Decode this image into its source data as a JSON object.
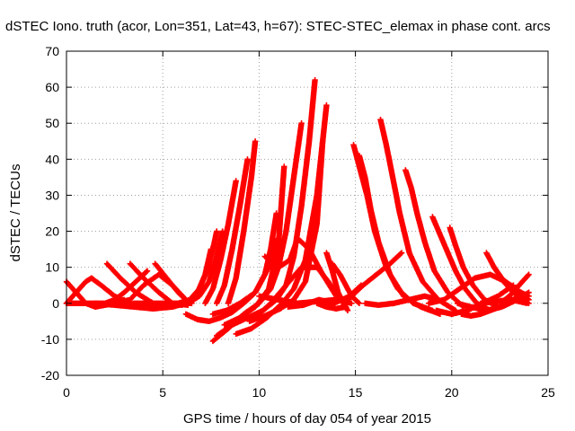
{
  "chart_data": {
    "type": "scatter",
    "title": "dSTEC Iono. truth (acor, Lon=351, Lat=43, h=67): STEC-STEC_elemax in phase cont. arcs",
    "xlabel": "GPS time / hours of day 054 of year 2015",
    "ylabel": "dSTEC  / TECUs",
    "xlim": [
      0,
      25
    ],
    "ylim": [
      -20,
      70
    ],
    "xticks": [
      0,
      5,
      10,
      15,
      20,
      25
    ],
    "yticks": [
      -20,
      -10,
      0,
      10,
      20,
      30,
      40,
      50,
      60,
      70
    ],
    "grid": true,
    "marker": "+",
    "color": "#ff0000",
    "series": [
      {
        "x": [
          0.0,
          0.5,
          1.0,
          1.5,
          2.0,
          2.5,
          3.0
        ],
        "y": [
          6,
          3,
          0,
          -1,
          -0.5,
          0,
          1
        ]
      },
      {
        "x": [
          0.0,
          0.5,
          1.0,
          1.3,
          1.8,
          2.5,
          3.2,
          4.0
        ],
        "y": [
          0,
          3,
          6,
          7,
          5,
          2,
          0,
          -0.5
        ]
      },
      {
        "x": [
          0.0,
          1.0,
          2.0,
          2.5,
          3.0,
          3.6,
          4.2
        ],
        "y": [
          0,
          0,
          0,
          1,
          3,
          6,
          9
        ]
      },
      {
        "x": [
          2.1,
          2.8,
          3.6,
          4.5,
          5.5,
          6.2
        ],
        "y": [
          11,
          7,
          3,
          0,
          -1,
          0
        ]
      },
      {
        "x": [
          2.5,
          3.3,
          4.0,
          4.8,
          5.5,
          6.2
        ],
        "y": [
          0,
          1,
          5,
          8,
          5,
          1
        ]
      },
      {
        "x": [
          3.3,
          4.0,
          4.8,
          5.5,
          6.3
        ],
        "y": [
          11,
          7,
          3,
          0,
          -0.5
        ]
      },
      {
        "x": [
          4.6,
          5.2,
          5.8,
          6.4
        ],
        "y": [
          11,
          7,
          3,
          0
        ]
      },
      {
        "x": [
          1.5,
          2.5,
          3.5,
          4.5,
          5.5,
          6.0
        ],
        "y": [
          0,
          -0.5,
          -1,
          -1.5,
          -1,
          0
        ]
      },
      {
        "x": [
          3.5,
          4.5,
          5.5,
          6.0,
          6.5
        ],
        "y": [
          0,
          0,
          0,
          0,
          0
        ]
      },
      {
        "x": [
          5.5,
          6.0,
          6.4,
          6.8,
          7.2,
          7.5
        ],
        "y": [
          0,
          -0.5,
          0.5,
          3,
          8,
          15
        ]
      },
      {
        "x": [
          5.8,
          6.4,
          6.9,
          7.3,
          7.6,
          7.8
        ],
        "y": [
          0,
          1,
          4,
          9,
          15,
          20
        ]
      },
      {
        "x": [
          6.3,
          6.9,
          7.4,
          7.8,
          8.1
        ],
        "y": [
          0,
          2,
          6,
          13,
          20
        ]
      },
      {
        "x": [
          7.2,
          7.6,
          8.0,
          8.4,
          8.8
        ],
        "y": [
          0,
          4,
          12,
          22,
          34
        ]
      },
      {
        "x": [
          7.8,
          8.2,
          8.6,
          9.0,
          9.4
        ],
        "y": [
          0,
          5,
          15,
          27,
          40
        ]
      },
      {
        "x": [
          8.4,
          8.8,
          9.2,
          9.6,
          9.8
        ],
        "y": [
          0,
          7,
          20,
          35,
          45
        ]
      },
      {
        "x": [
          6.2,
          6.8,
          7.4,
          8.0,
          8.6,
          9.2,
          9.8,
          10.3,
          10.6,
          10.9
        ],
        "y": [
          -3,
          -4.5,
          -5,
          -4,
          -2.5,
          0,
          3,
          8,
          15,
          25
        ]
      },
      {
        "x": [
          7.6,
          8.4,
          9.2,
          10.0,
          10.6,
          11.0,
          11.4,
          11.8,
          12.2
        ],
        "y": [
          -10.5,
          -7,
          -3,
          0,
          4,
          10,
          20,
          35,
          50
        ]
      },
      {
        "x": [
          7.8,
          8.6,
          9.4,
          10.2,
          10.9,
          11.4,
          11.8,
          12.2,
          12.6,
          12.9
        ],
        "y": [
          -9,
          -6,
          -4,
          -2,
          1,
          5,
          13,
          27,
          45,
          62
        ]
      },
      {
        "x": [
          8.8,
          9.6,
          10.4,
          11.2,
          11.8,
          12.4,
          13.0,
          13.5
        ],
        "y": [
          -8.5,
          -7,
          -4,
          0,
          4,
          12,
          30,
          55
        ]
      },
      {
        "x": [
          9.5,
          10.3,
          11.1,
          11.8,
          12.4,
          13.0,
          13.3
        ],
        "y": [
          -5,
          -3.5,
          -1.5,
          1,
          6,
          22,
          45
        ]
      },
      {
        "x": [
          7.6,
          8.3,
          9.0,
          9.8,
          10.5,
          10.8
        ],
        "y": [
          -3,
          -2,
          0,
          3,
          10,
          18
        ]
      },
      {
        "x": [
          8.2,
          9.0,
          9.8,
          10.5,
          11.0,
          11.3
        ],
        "y": [
          -6,
          -4,
          -1,
          4,
          16,
          38
        ]
      },
      {
        "x": [
          9.8,
          10.6,
          11.4,
          12.2,
          13.0,
          13.6,
          14.2
        ],
        "y": [
          -4,
          0,
          5,
          10,
          10,
          6,
          1
        ]
      },
      {
        "x": [
          10.3,
          11.0,
          11.6,
          12.0,
          12.6,
          13.3,
          14.0
        ],
        "y": [
          13,
          10,
          12,
          18,
          15,
          8,
          2
        ]
      },
      {
        "x": [
          10.0,
          11.0,
          12.0,
          13.0,
          14.0,
          14.8
        ],
        "y": [
          2,
          1,
          0,
          0.5,
          1,
          0
        ]
      },
      {
        "x": [
          11.5,
          12.3,
          13.1,
          13.9,
          14.7,
          15.3
        ],
        "y": [
          -1,
          -0.5,
          1,
          0,
          2,
          5
        ]
      },
      {
        "x": [
          13.5,
          13.8,
          14.1,
          14.4,
          14.6
        ],
        "y": [
          14,
          9,
          3,
          0,
          -2
        ]
      },
      {
        "x": [
          14.3,
          14.8,
          15.4,
          16.1,
          16.8,
          17.4
        ],
        "y": [
          -1,
          2,
          5,
          8,
          11,
          14
        ]
      },
      {
        "x": [
          13.8,
          14.2,
          14.5,
          14.8,
          15.2
        ],
        "y": [
          11,
          8,
          5,
          2,
          0
        ]
      },
      {
        "x": [
          14.9,
          15.2,
          15.6,
          16.0,
          16.6,
          17.2,
          18.0,
          19.0
        ],
        "y": [
          44,
          38,
          30,
          20,
          10,
          4,
          0,
          -2
        ]
      },
      {
        "x": [
          15.2,
          15.5,
          15.8,
          16.2,
          16.8,
          17.5,
          18.4,
          19.4
        ],
        "y": [
          41,
          35,
          26,
          17,
          8,
          2,
          -1,
          -3
        ]
      },
      {
        "x": [
          16.3,
          16.6,
          16.9,
          17.3,
          17.8,
          18.5,
          19.3,
          20.2
        ],
        "y": [
          51,
          44,
          36,
          25,
          14,
          6,
          1,
          -2
        ]
      },
      {
        "x": [
          17.6,
          17.9,
          18.2,
          18.6,
          19.1,
          19.8,
          20.6
        ],
        "y": [
          37,
          32,
          25,
          17,
          9,
          3,
          -1
        ]
      },
      {
        "x": [
          19.0,
          19.4,
          19.8,
          20.2,
          20.7,
          21.3,
          22.0
        ],
        "y": [
          24,
          19,
          14,
          9,
          4,
          0,
          -2
        ]
      },
      {
        "x": [
          19.9,
          20.2,
          20.6,
          21.1,
          21.7,
          22.4
        ],
        "y": [
          21,
          16,
          10,
          5,
          1,
          -1
        ]
      },
      {
        "x": [
          21.8,
          22.2,
          22.7,
          23.2,
          23.8
        ],
        "y": [
          14,
          10,
          6,
          3,
          1
        ]
      },
      {
        "x": [
          22.2,
          22.6,
          23.1,
          23.6,
          24.0
        ],
        "y": [
          10,
          7,
          4,
          1,
          0
        ]
      },
      {
        "x": [
          18.8,
          19.6,
          20.4,
          21.2,
          22.0,
          22.8,
          23.6,
          24.0
        ],
        "y": [
          0,
          1,
          4,
          7,
          8,
          6,
          3,
          1
        ]
      },
      {
        "x": [
          19.2,
          20.0,
          20.8,
          21.6,
          22.4,
          23.2
        ],
        "y": [
          -2,
          -3,
          -2,
          0,
          2,
          5
        ]
      },
      {
        "x": [
          20.3,
          21.0,
          21.8,
          22.6,
          23.4,
          24.0
        ],
        "y": [
          0,
          -1,
          -2,
          -1,
          1,
          3
        ]
      },
      {
        "x": [
          20.5,
          21.0,
          21.5,
          22.0,
          22.5,
          23.0
        ],
        "y": [
          -3,
          -3.5,
          -3,
          -2,
          -1,
          0
        ]
      },
      {
        "x": [
          21.5,
          22.3,
          23.1,
          23.9
        ],
        "y": [
          0,
          0.5,
          1,
          0
        ]
      },
      {
        "x": [
          22.5,
          23.0,
          23.5,
          24.0
        ],
        "y": [
          0,
          2,
          5,
          8
        ]
      },
      {
        "x": [
          22.8,
          23.2,
          23.6,
          24.0
        ],
        "y": [
          0,
          1,
          3,
          2
        ]
      },
      {
        "x": [
          15.5,
          16.2,
          17.0,
          17.8,
          18.6,
          19.3
        ],
        "y": [
          0,
          -0.5,
          0,
          1,
          2,
          1
        ]
      },
      {
        "x": [
          13.0,
          13.5,
          14.0,
          14.5
        ],
        "y": [
          0,
          -1,
          -1.5,
          -1
        ]
      }
    ]
  }
}
